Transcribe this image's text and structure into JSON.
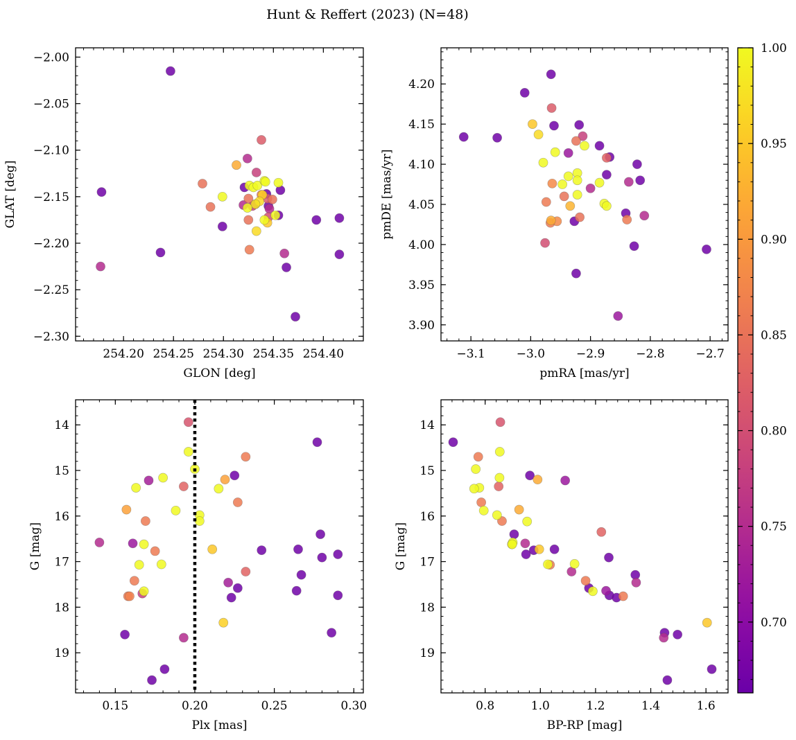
{
  "figure": {
    "title": "Hunt & Reffert (2023) (N=48)",
    "colormap": "plasma",
    "color_range": [
      0.663,
      1.0
    ],
    "colorbar_ticks": [
      "0.70",
      "0.75",
      "0.80",
      "0.85",
      "0.90",
      "0.95",
      "1.00"
    ],
    "colorbar_tick_values": [
      0.7,
      0.75,
      0.8,
      0.85,
      0.9,
      0.95,
      1.0
    ]
  },
  "chart_data": [
    {
      "type": "scatter",
      "xlabel": "GLON [deg]",
      "ylabel": "GLAT [deg]",
      "xlim": [
        254.152,
        254.44
      ],
      "ylim": [
        -2.305,
        -1.99
      ],
      "xticks": [
        254.2,
        254.25,
        254.3,
        254.35,
        254.4
      ],
      "xtick_labels": [
        "254.20",
        "254.25",
        "254.30",
        "254.35",
        "254.40"
      ],
      "yticks": [
        -2.3,
        -2.25,
        -2.2,
        -2.15,
        -2.1,
        -2.05,
        -2.0
      ],
      "ytick_labels": [
        "−2.30",
        "−2.25",
        "−2.20",
        "−2.15",
        "−2.10",
        "−2.05",
        "−2.00"
      ],
      "x": [
        254.247,
        254.178,
        254.237,
        254.177,
        254.299,
        254.324,
        254.338,
        254.321,
        254.332,
        254.343,
        254.345,
        254.355,
        254.357,
        254.393,
        254.416,
        254.416,
        254.361,
        254.363,
        254.372,
        254.32,
        254.333,
        254.329,
        254.346,
        254.344,
        254.345,
        254.279,
        254.287,
        254.325,
        254.325,
        254.338,
        254.349,
        254.326,
        254.313,
        254.299,
        254.326,
        254.33,
        254.334,
        254.341,
        254.342,
        254.352,
        254.355,
        254.341,
        254.332,
        254.336,
        254.344,
        254.333,
        254.324,
        254.339
      ],
      "y": [
        -2.015,
        -2.145,
        -2.21,
        -2.225,
        -2.182,
        -2.109,
        -2.089,
        -2.14,
        -2.158,
        -2.147,
        -2.16,
        -2.17,
        -2.143,
        -2.175,
        -2.173,
        -2.212,
        -2.211,
        -2.226,
        -2.279,
        -2.159,
        -2.124,
        -2.16,
        -2.163,
        -2.152,
        -2.172,
        -2.136,
        -2.161,
        -2.152,
        -2.175,
        -2.148,
        -2.153,
        -2.207,
        -2.116,
        -2.15,
        -2.138,
        -2.14,
        -2.138,
        -2.133,
        -2.134,
        -2.17,
        -2.135,
        -2.175,
        -2.158,
        -2.155,
        -2.178,
        -2.187,
        -2.162,
        -2.148
      ],
      "color_value": [
        0.67,
        0.67,
        0.67,
        0.75,
        0.67,
        0.75,
        0.82,
        0.67,
        0.67,
        0.67,
        0.67,
        0.67,
        0.67,
        0.67,
        0.67,
        0.67,
        0.75,
        0.67,
        0.67,
        0.75,
        0.78,
        0.78,
        0.75,
        0.82,
        0.8,
        0.85,
        0.85,
        0.85,
        0.85,
        0.86,
        0.85,
        0.86,
        0.92,
        1.0,
        1.0,
        1.0,
        1.0,
        1.0,
        1.0,
        1.0,
        1.0,
        1.0,
        0.98,
        0.97,
        0.95,
        0.97,
        1.0,
        0.96
      ]
    },
    {
      "type": "scatter",
      "xlabel": "pmRA [mas/yr]",
      "ylabel": "pmDE [mas/yr]",
      "xlim": [
        -3.15,
        -2.67
      ],
      "ylim": [
        3.88,
        4.245
      ],
      "xticks": [
        -3.1,
        -3.0,
        -2.9,
        -2.8,
        -2.7
      ],
      "xtick_labels": [
        "−3.1",
        "−3.0",
        "−2.9",
        "−2.8",
        "−2.7"
      ],
      "yticks": [
        3.9,
        3.95,
        4.0,
        4.05,
        4.1,
        4.15,
        4.2
      ],
      "ytick_labels": [
        "3.90",
        "3.95",
        "4.00",
        "4.05",
        "4.10",
        "4.15",
        "4.20"
      ],
      "x": [
        -2.966,
        -3.01,
        -2.961,
        -3.112,
        -3.056,
        -2.919,
        -2.885,
        -2.873,
        -2.868,
        -2.822,
        -2.817,
        -2.841,
        -2.827,
        -2.706,
        -2.937,
        -2.927,
        -2.924,
        -2.854,
        -2.9,
        -2.965,
        -2.913,
        -2.836,
        -2.81,
        -2.976,
        -2.873,
        -2.974,
        -2.967,
        -2.924,
        -2.944,
        -2.964,
        -2.956,
        -2.966,
        -2.918,
        -2.839,
        -2.997,
        -2.987,
        -2.959,
        -2.979,
        -2.937,
        -2.922,
        -2.922,
        -2.885,
        -2.947,
        -2.877,
        -2.873,
        -2.91,
        -2.922,
        -2.934
      ],
      "y": [
        4.212,
        4.189,
        4.148,
        4.134,
        4.133,
        4.149,
        4.123,
        4.087,
        4.109,
        4.1,
        4.08,
        4.039,
        3.998,
        3.994,
        4.114,
        4.029,
        3.964,
        3.911,
        4.07,
        4.17,
        4.135,
        4.078,
        4.036,
        4.002,
        4.108,
        4.053,
        4.027,
        4.129,
        4.06,
        4.076,
        4.029,
        4.03,
        4.034,
        4.031,
        4.15,
        4.137,
        4.115,
        4.102,
        4.085,
        4.089,
        4.08,
        4.077,
        4.075,
        4.051,
        4.048,
        4.123,
        4.062,
        4.048
      ],
      "color_value": [
        0.67,
        0.67,
        0.67,
        0.67,
        0.67,
        0.67,
        0.67,
        0.67,
        0.67,
        0.67,
        0.67,
        0.67,
        0.67,
        0.67,
        0.72,
        0.67,
        0.67,
        0.72,
        0.75,
        0.82,
        0.78,
        0.75,
        0.75,
        0.8,
        0.83,
        0.86,
        0.86,
        0.85,
        0.85,
        0.88,
        0.88,
        0.92,
        0.85,
        0.86,
        0.95,
        0.97,
        1.0,
        1.0,
        1.0,
        1.0,
        1.0,
        1.0,
        1.0,
        1.0,
        1.0,
        1.0,
        1.0,
        0.93
      ]
    },
    {
      "type": "scatter",
      "xlabel": "Plx [mas]",
      "ylabel": "G [mag]",
      "xlim": [
        0.125,
        0.306
      ],
      "ylim": [
        19.88,
        13.45
      ],
      "y_inverted": true,
      "reference_line": {
        "axis": "x",
        "value": 0.2,
        "style": "dotted"
      },
      "xticks": [
        0.15,
        0.2,
        0.25,
        0.3
      ],
      "xtick_labels": [
        "0.15",
        "0.20",
        "0.25",
        "0.30"
      ],
      "yticks": [
        14,
        15,
        16,
        17,
        18,
        19
      ],
      "ytick_labels": [
        "14",
        "15",
        "16",
        "17",
        "18",
        "19"
      ],
      "x": [
        0.277,
        0.225,
        0.242,
        0.265,
        0.28,
        0.279,
        0.29,
        0.267,
        0.227,
        0.264,
        0.223,
        0.29,
        0.286,
        0.156,
        0.181,
        0.173,
        0.161,
        0.171,
        0.167,
        0.14,
        0.193,
        0.221,
        0.232,
        0.196,
        0.193,
        0.232,
        0.227,
        0.219,
        0.169,
        0.158,
        0.175,
        0.162,
        0.159,
        0.157,
        0.196,
        0.2,
        0.18,
        0.163,
        0.215,
        0.188,
        0.203,
        0.203,
        0.168,
        0.179,
        0.165,
        0.168,
        0.211,
        0.218
      ],
      "y": [
        14.38,
        15.11,
        16.75,
        16.73,
        16.91,
        16.4,
        16.84,
        17.29,
        17.58,
        17.64,
        17.79,
        17.74,
        18.56,
        18.6,
        19.36,
        19.6,
        16.6,
        15.22,
        17.7,
        16.58,
        18.67,
        17.46,
        17.22,
        13.94,
        15.35,
        14.7,
        15.7,
        15.2,
        16.11,
        17.76,
        16.77,
        17.42,
        17.76,
        15.86,
        14.59,
        14.97,
        15.16,
        15.38,
        15.4,
        15.88,
        15.98,
        16.11,
        16.62,
        17.06,
        17.07,
        17.65,
        16.73,
        18.34
      ],
      "color_value": [
        0.67,
        0.67,
        0.67,
        0.67,
        0.67,
        0.67,
        0.67,
        0.67,
        0.67,
        0.67,
        0.67,
        0.67,
        0.67,
        0.67,
        0.67,
        0.67,
        0.72,
        0.73,
        0.78,
        0.75,
        0.75,
        0.73,
        0.83,
        0.81,
        0.83,
        0.86,
        0.86,
        0.91,
        0.86,
        0.86,
        0.86,
        0.86,
        0.87,
        0.91,
        1.0,
        1.0,
        1.0,
        1.0,
        1.0,
        1.0,
        1.0,
        1.0,
        1.0,
        1.0,
        1.0,
        1.0,
        0.95,
        0.96
      ]
    },
    {
      "type": "scatter",
      "xlabel": "BP-RP [mag]",
      "ylabel": "G [mag]",
      "xlim": [
        0.64,
        1.68
      ],
      "ylim": [
        19.88,
        13.45
      ],
      "y_inverted": true,
      "xticks": [
        0.8,
        1.0,
        1.2,
        1.4,
        1.6
      ],
      "xtick_labels": [
        "0.8",
        "1.0",
        "1.2",
        "1.4",
        "1.6"
      ],
      "yticks": [
        14,
        15,
        16,
        17,
        18,
        19
      ],
      "ytick_labels": [
        "14",
        "15",
        "16",
        "17",
        "18",
        "19"
      ],
      "x": [
        0.684,
        0.962,
        1.051,
        0.905,
        0.948,
        0.976,
        1.248,
        1.344,
        1.176,
        1.25,
        1.276,
        1.497,
        1.45,
        1.46,
        1.621,
        1.09,
        1.347,
        0.945,
        1.113,
        1.447,
        1.238,
        0.855,
        0.849,
        1.221,
        0.775,
        0.786,
        1.164,
        0.861,
        1.035,
        1.3,
        0.766,
        0.923,
        0.99,
        0.853,
        0.779,
        0.76,
        0.852,
        0.952,
        0.9,
        0.795,
        0.843,
        1.124,
        0.898,
        1.027,
        1.19,
        0.996,
        1.604,
        0.897
      ],
      "y": [
        14.38,
        15.11,
        16.73,
        16.4,
        16.84,
        16.75,
        16.91,
        17.29,
        17.58,
        17.74,
        17.79,
        18.6,
        18.56,
        19.6,
        19.36,
        15.22,
        17.46,
        16.6,
        17.22,
        18.67,
        17.64,
        13.94,
        15.35,
        16.35,
        14.7,
        15.7,
        17.42,
        16.11,
        17.07,
        17.76,
        14.97,
        15.86,
        15.2,
        14.59,
        15.38,
        15.4,
        15.16,
        16.12,
        16.58,
        15.88,
        15.98,
        17.05,
        16.62,
        17.06,
        17.65,
        16.73,
        18.34,
        16.62
      ],
      "color_value": [
        0.67,
        0.67,
        0.67,
        0.67,
        0.67,
        0.67,
        0.67,
        0.67,
        0.67,
        0.67,
        0.67,
        0.67,
        0.67,
        0.67,
        0.67,
        0.72,
        0.75,
        0.75,
        0.75,
        0.75,
        0.72,
        0.81,
        0.83,
        0.83,
        0.86,
        0.86,
        0.86,
        0.86,
        0.86,
        0.86,
        1.0,
        0.92,
        0.92,
        1.0,
        1.0,
        1.0,
        1.0,
        1.0,
        1.0,
        1.0,
        1.0,
        1.0,
        1.0,
        1.0,
        1.0,
        0.95,
        0.95,
        0.96
      ]
    }
  ]
}
